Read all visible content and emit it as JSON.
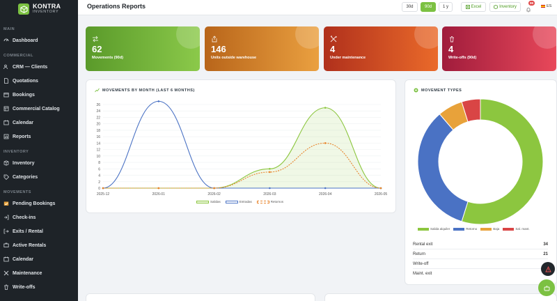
{
  "brand": {
    "name": "KONTRA",
    "sub": "INVENTORY"
  },
  "sidebar": {
    "sections": [
      {
        "label": "MAIN",
        "items": [
          {
            "label": "Dashboard",
            "icon": "dashboard-icon"
          }
        ]
      },
      {
        "label": "COMMERCIAL",
        "items": [
          {
            "label": "CRM — Clients",
            "icon": "users-icon"
          },
          {
            "label": "Quotations",
            "icon": "document-icon"
          },
          {
            "label": "Bookings",
            "icon": "bookings-icon"
          },
          {
            "label": "Commercial Catalog",
            "icon": "catalog-icon"
          },
          {
            "label": "Calendar",
            "icon": "calendar-icon"
          },
          {
            "label": "Reports",
            "icon": "reports-icon"
          }
        ]
      },
      {
        "label": "INVENTORY",
        "items": [
          {
            "label": "Inventory",
            "icon": "box-icon"
          },
          {
            "label": "Categories",
            "icon": "tag-icon"
          }
        ]
      },
      {
        "label": "MOVEMENTS",
        "items": [
          {
            "label": "Pending Bookings",
            "icon": "pending-icon"
          },
          {
            "label": "Check-ins",
            "icon": "checkin-icon"
          },
          {
            "label": "Exits / Rental",
            "icon": "exit-icon"
          },
          {
            "label": "Active Rentals",
            "icon": "rentals-icon"
          },
          {
            "label": "Calendar",
            "icon": "calendar-icon"
          },
          {
            "label": "Maintenance",
            "icon": "wrench-icon"
          },
          {
            "label": "Write-offs",
            "icon": "trash-icon"
          }
        ]
      }
    ]
  },
  "header": {
    "title": "Operations Reports",
    "ranges": [
      "30d",
      "90d",
      "1 y"
    ],
    "active_range": "90d",
    "excel_label": "Excel",
    "inventory_label": "Inventory",
    "notifications": "99",
    "lang": "ES"
  },
  "kpis": [
    {
      "value": "62",
      "label": "Movements (90d)",
      "icon": "arrows-icon"
    },
    {
      "value": "146",
      "label": "Units outside warehouse",
      "icon": "export-icon"
    },
    {
      "value": "4",
      "label": "Under maintenance",
      "icon": "tools-icon"
    },
    {
      "value": "4",
      "label": "Write-offs (90d)",
      "icon": "trash-icon"
    }
  ],
  "colors": {
    "accent": "#7cc142",
    "salidas": "#8cc63f",
    "entradas": "#4a72c4",
    "retornos": "#e8832a",
    "baja": "#e8a23a",
    "mant": "#d94545"
  },
  "movements_panel": {
    "title": "MOVEMENTS BY MONTH (LAST 6 MONTHS)"
  },
  "types_panel": {
    "title": "MOVEMENT TYPES",
    "rows": [
      {
        "label": "Rental exit",
        "value": "34"
      },
      {
        "label": "Return",
        "value": "21"
      },
      {
        "label": "Write-off",
        "value": ""
      },
      {
        "label": "Maint. exit",
        "value": ""
      }
    ]
  },
  "chart_data": [
    {
      "type": "line",
      "x": [
        "2025-12",
        "2026-01",
        "2026-02",
        "2026-03",
        "2026-04",
        "2026-05"
      ],
      "ylim": [
        0,
        26
      ],
      "yticks": [
        0,
        2,
        4,
        6,
        8,
        10,
        12,
        14,
        16,
        18,
        20,
        22,
        24,
        26
      ],
      "series": [
        {
          "name": "Salidas",
          "values": [
            0,
            0,
            0,
            6,
            25,
            0
          ]
        },
        {
          "name": "Entradas",
          "values": [
            0,
            27,
            0,
            0,
            0,
            0
          ]
        },
        {
          "name": "Retornos",
          "values": [
            0,
            0,
            0,
            5,
            14,
            0
          ]
        }
      ],
      "legend": "bottom"
    },
    {
      "type": "pie",
      "labels": [
        "Salida alquiler",
        "Retorno",
        "Baja",
        "Sal. mant."
      ],
      "values": [
        34,
        21,
        4,
        3
      ],
      "legend": "bottom"
    }
  ]
}
